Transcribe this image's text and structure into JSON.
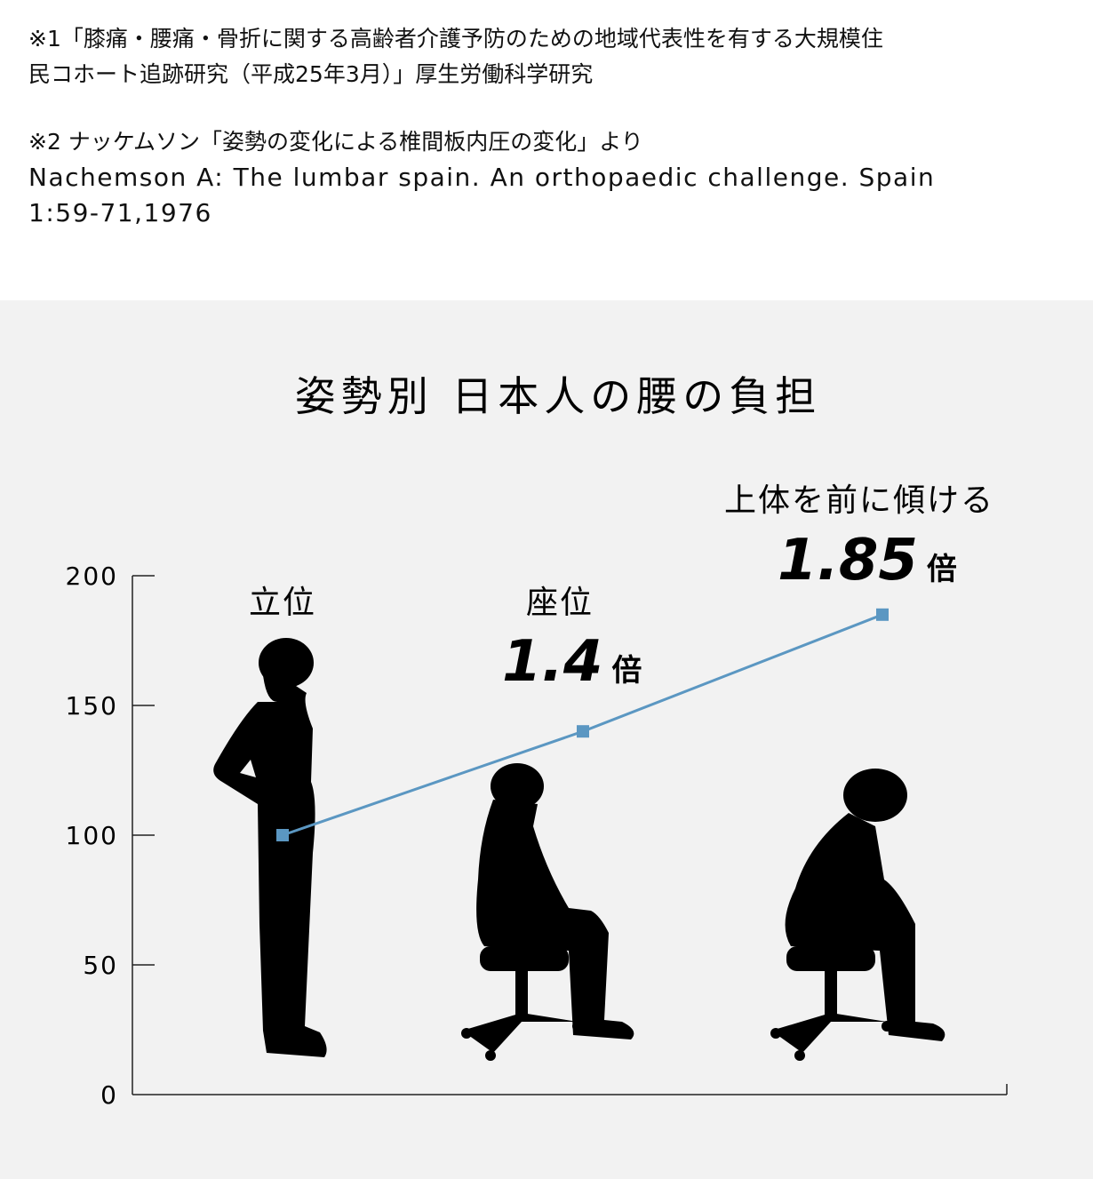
{
  "notes": {
    "note1_line1": "※1「膝痛・腰痛・骨折に関する高齢者介護予防のための地域代表性を有する大規模住",
    "note1_line2": "民コホート追跡研究（平成25年3月）」厚生労働科学研究",
    "note2_line1": "※2 ナッケムソン「姿勢の変化による椎間板内圧の変化」より",
    "note2_line2": "Nachemson A: The lumbar spain. An orthopaedic challenge. Spain",
    "note2_line3": "1:59-71,1976"
  },
  "chart_data": {
    "type": "line",
    "title": "姿勢別 日本人の腰の負担",
    "categories": [
      "立位",
      "座位",
      "上体を前に傾ける"
    ],
    "series": [
      {
        "values": [
          100,
          140,
          185
        ],
        "color": "#5b97c2"
      }
    ],
    "annotations": [
      {
        "category": "座位",
        "multiplier": "1.4",
        "unit": "倍"
      },
      {
        "category": "上体を前に傾ける",
        "multiplier": "1.85",
        "unit": "倍"
      }
    ],
    "yticks": [
      "0",
      "50",
      "100",
      "150",
      "200"
    ],
    "ylim": [
      0,
      200
    ],
    "grid": false,
    "marker": "square"
  }
}
